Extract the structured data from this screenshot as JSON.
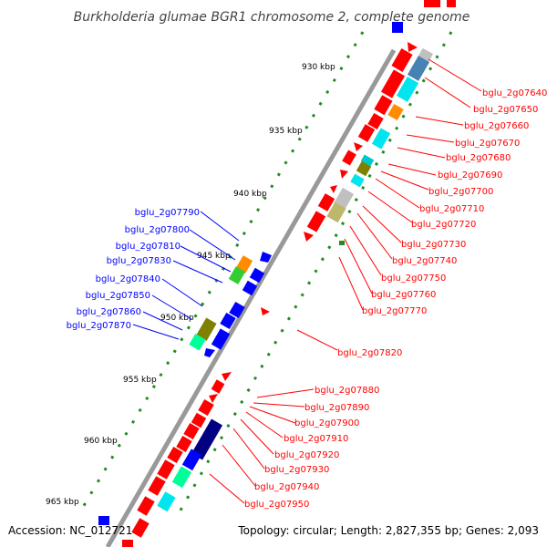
{
  "title": "Burkholderia glumae BGR1 chromosome 2, complete genome",
  "footer": {
    "accession": "Accession: NC_012721",
    "topology": "Topology: circular; Length: 2,827,355 bp; Genes: 2,093"
  },
  "colors": {
    "red": "#ff0000",
    "blue": "#0000ff",
    "navy": "#000080",
    "green": "#33cc33",
    "olive": "#808000",
    "cyan": "#00e5ee",
    "teal": "#00ff99",
    "orange": "#ff8c00",
    "steel": "#4682b4",
    "gray": "#c0c0c0",
    "khaki": "#bdb76b",
    "label_right": "#ff0000",
    "label_left": "#0000ff"
  },
  "kbp_ticks": [
    "930 kbp",
    "935 kbp",
    "940 kbp",
    "945 kbp",
    "950 kbp",
    "955 kbp",
    "960 kbp",
    "965 kbp"
  ],
  "right_labels": [
    "bglu_2g07640",
    "bglu_2g07650",
    "bglu_2g07660",
    "bglu_2g07670",
    "bglu_2g07680",
    "bglu_2g07690",
    "bglu_2g07700",
    "bglu_2g07710",
    "bglu_2g07720",
    "bglu_2g07730",
    "bglu_2g07740",
    "bglu_2g07750",
    "bglu_2g07760",
    "bglu_2g07770",
    "bglu_2g07820",
    "bglu_2g07880",
    "bglu_2g07890",
    "bglu_2g07900",
    "bglu_2g07910",
    "bglu_2g07920",
    "bglu_2g07930",
    "bglu_2g07940",
    "bglu_2g07950"
  ],
  "left_labels": [
    "bglu_2g07790",
    "bglu_2g07800",
    "bglu_2g07810",
    "bglu_2g07830",
    "bglu_2g07840",
    "bglu_2g07850",
    "bglu_2g07860",
    "bglu_2g07870"
  ]
}
